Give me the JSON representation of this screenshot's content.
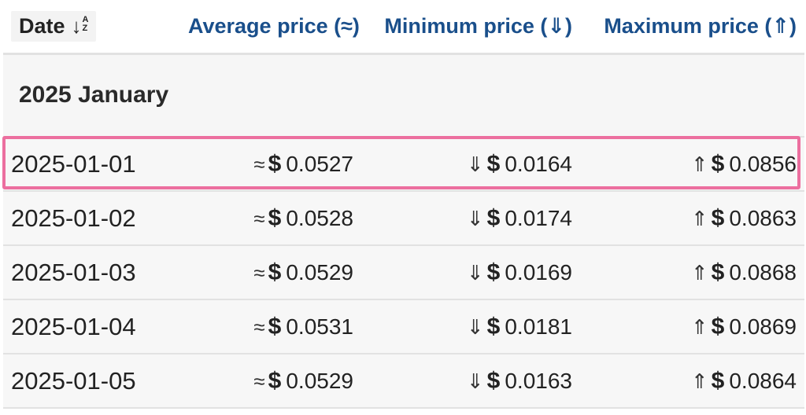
{
  "header": {
    "date_label": "Date",
    "avg_label": "Average price (≈)",
    "min_label": "Minimum price (⇓)",
    "max_label": "Maximum price (⇑)",
    "sort_icon": "sort-alpha-down-icon",
    "sort_arrow": "↓",
    "sort_a": "A",
    "sort_z": "Z"
  },
  "month": {
    "label": "2025 January"
  },
  "symbols": {
    "avg": "≈",
    "min": "⇓",
    "max": "⇑",
    "currency": "$"
  },
  "highlight_color": "#ec6f9f",
  "rows": [
    {
      "date": "2025-01-01",
      "avg": "0.0527",
      "min": "0.0164",
      "max": "0.0856"
    },
    {
      "date": "2025-01-02",
      "avg": "0.0528",
      "min": "0.0174",
      "max": "0.0863"
    },
    {
      "date": "2025-01-03",
      "avg": "0.0529",
      "min": "0.0169",
      "max": "0.0868"
    },
    {
      "date": "2025-01-04",
      "avg": "0.0531",
      "min": "0.0181",
      "max": "0.0869"
    },
    {
      "date": "2025-01-05",
      "avg": "0.0529",
      "min": "0.0163",
      "max": "0.0864"
    }
  ]
}
